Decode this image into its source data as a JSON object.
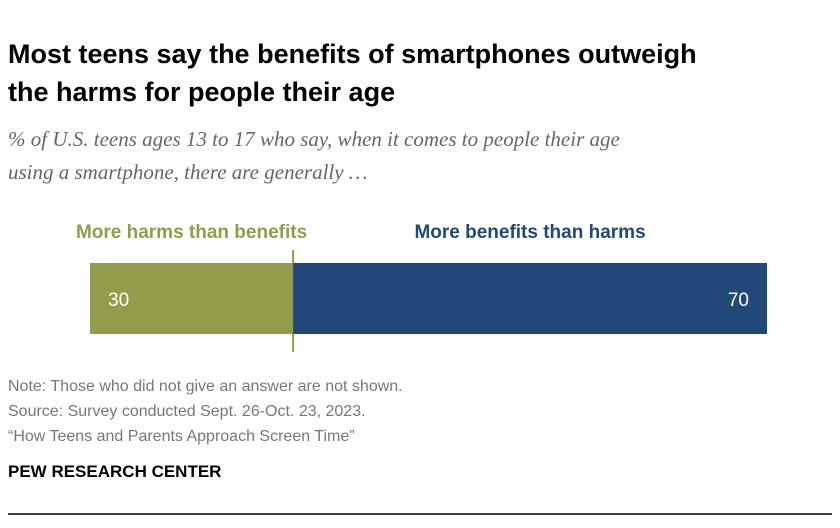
{
  "chart_data": {
    "type": "stacked-bar-horizontal",
    "title": [
      "Most teens say the benefits of smartphones outweigh",
      "the harms for people their age"
    ],
    "subtitle": [
      "% of U.S. teens ages 13 to 17 who say, when it comes to people their age",
      "using a smartphone, there are generally …"
    ],
    "series": [
      {
        "name": "More harms than benefits",
        "color": "#949c4b",
        "values": [
          30
        ]
      },
      {
        "name": "More benefits than harms",
        "color": "#22487a",
        "values": [
          70
        ]
      }
    ],
    "xlim": [
      0,
      100
    ],
    "notes": [
      "Note: Those who did not give an answer are not shown.",
      "Source: Survey conducted Sept. 26-Oct. 23, 2023.",
      "“How Teens and Parents Approach Screen Time”"
    ],
    "source_brand": "PEW RESEARCH CENTER"
  }
}
